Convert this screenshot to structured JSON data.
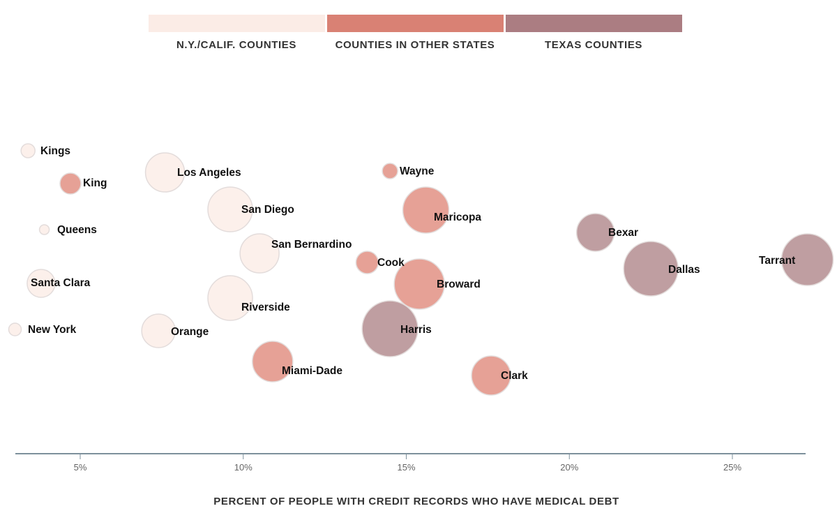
{
  "chart_data": {
    "type": "scatter",
    "subtype": "bubble",
    "xlabel": "PERCENT OF PEOPLE WITH CREDIT RECORDS WHO HAVE MEDICAL DEBT",
    "xlim": [
      2.8,
      27.8
    ],
    "xticks": [
      5,
      10,
      15,
      20,
      25
    ],
    "xtick_labels": [
      "5%",
      "10%",
      "15%",
      "20%",
      "25%"
    ],
    "grid": false,
    "legend": {
      "placement": "top-center",
      "entries": [
        {
          "key": "nyca",
          "label": "N.Y./CALIF. COUNTIES",
          "color": "#fbece6"
        },
        {
          "key": "other",
          "label": "COUNTIES IN OTHER STATES",
          "color": "#d98174"
        },
        {
          "key": "texas",
          "label": "TEXAS COUNTIES",
          "color": "#ab7d82"
        }
      ]
    },
    "bubble_colors": {
      "nyca": "#fcf0eb",
      "other": "#e6a196",
      "texas": "#bf9ea1"
    },
    "points": [
      {
        "name": "Kings",
        "group": "nyca",
        "x": 3.4,
        "size": 10
      },
      {
        "name": "King",
        "group": "other",
        "x": 4.7,
        "size": 15
      },
      {
        "name": "Queens",
        "group": "nyca",
        "x": 3.9,
        "size": 7
      },
      {
        "name": "Santa Clara",
        "group": "nyca",
        "x": 3.8,
        "size": 20
      },
      {
        "name": "New York",
        "group": "nyca",
        "x": 3.0,
        "size": 9
      },
      {
        "name": "Los Angeles",
        "group": "nyca",
        "x": 7.6,
        "size": 28
      },
      {
        "name": "San Diego",
        "group": "nyca",
        "x": 9.6,
        "size": 32
      },
      {
        "name": "San Bernardino",
        "group": "nyca",
        "x": 10.5,
        "size": 28
      },
      {
        "name": "Riverside",
        "group": "nyca",
        "x": 9.6,
        "size": 32
      },
      {
        "name": "Orange",
        "group": "nyca",
        "x": 7.4,
        "size": 24
      },
      {
        "name": "Miami-Dade",
        "group": "other",
        "x": 10.9,
        "size": 29
      },
      {
        "name": "Wayne",
        "group": "other",
        "x": 14.5,
        "size": 11
      },
      {
        "name": "Maricopa",
        "group": "other",
        "x": 15.6,
        "size": 33
      },
      {
        "name": "Cook",
        "group": "other",
        "x": 13.8,
        "size": 16
      },
      {
        "name": "Broward",
        "group": "other",
        "x": 15.4,
        "size": 36
      },
      {
        "name": "Harris",
        "group": "texas",
        "x": 14.5,
        "size": 40
      },
      {
        "name": "Clark",
        "group": "other",
        "x": 17.6,
        "size": 28
      },
      {
        "name": "Bexar",
        "group": "texas",
        "x": 20.8,
        "size": 27
      },
      {
        "name": "Dallas",
        "group": "texas",
        "x": 22.5,
        "size": 39
      },
      {
        "name": "Tarrant",
        "group": "texas",
        "x": 27.3,
        "size": 37
      }
    ]
  }
}
